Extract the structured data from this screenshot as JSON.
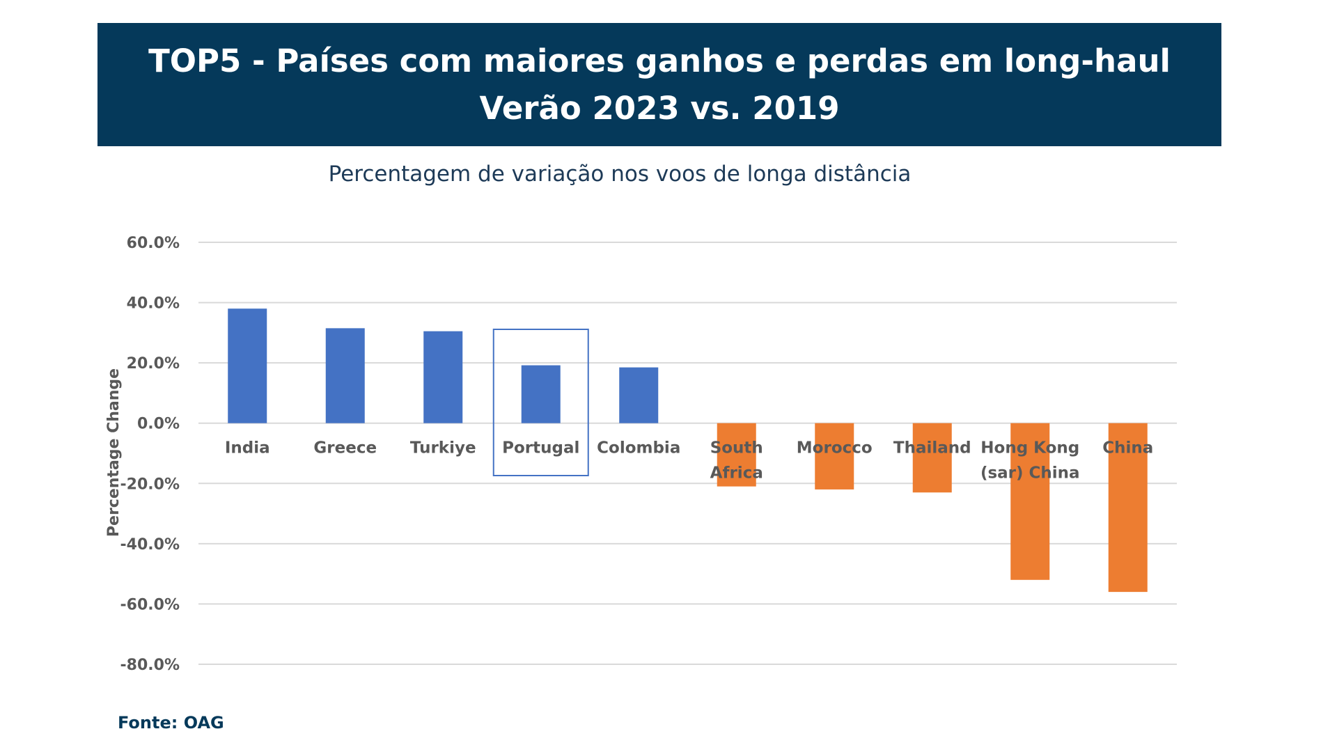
{
  "title": {
    "line1": "TOP5 - Países com maiores ganhos e perdas em long-haul",
    "line2": "Verão 2023 vs. 2019"
  },
  "subtitle": "Percentagem de variação nos voos de longa distância",
  "source": "Fonte: OAG",
  "colors": {
    "banner": "#05395a",
    "gain": "#4472c4",
    "loss": "#ed7d31",
    "grid": "#d9d9d9",
    "highlight_box": "#4472c4"
  },
  "chart_data": {
    "type": "bar",
    "ylabel": "Percentage Change",
    "ylim": [
      -80,
      60
    ],
    "yticks": [
      "60.0%",
      "40.0%",
      "20.0%",
      "0.0%",
      "-20.0%",
      "-40.0%",
      "-60.0%",
      "-80.0%"
    ],
    "ytick_values": [
      60,
      40,
      20,
      0,
      -20,
      -40,
      -60,
      -80
    ],
    "grid": true,
    "categories": [
      [
        "India"
      ],
      [
        "Greece"
      ],
      [
        "Turkiye"
      ],
      [
        "Portugal"
      ],
      [
        "Colombia"
      ],
      [
        "South",
        "Africa"
      ],
      [
        "Morocco"
      ],
      [
        "Thailand"
      ],
      [
        "Hong Kong",
        "(sar) China"
      ],
      [
        "China"
      ]
    ],
    "values": [
      38,
      31.5,
      30.5,
      19.2,
      18.5,
      -21,
      -22,
      -23,
      -52,
      -56
    ],
    "highlighted_category": "Portugal"
  }
}
